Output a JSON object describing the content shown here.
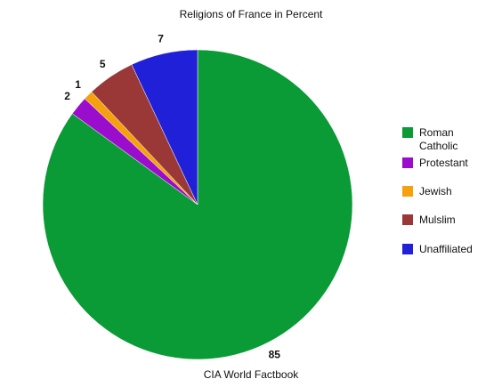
{
  "chart_data": {
    "type": "pie",
    "title": "Religions of France in Percent",
    "caption": "CIA World Factbook",
    "categories": [
      "Roman Catholic",
      "Protestant",
      "Jewish",
      "Mulslim",
      "Unaffiliated"
    ],
    "values": [
      85,
      2,
      1,
      5,
      7
    ],
    "colors": [
      "#0a9a36",
      "#9b0dcc",
      "#f5a10e",
      "#9a3838",
      "#2020d8"
    ],
    "legend": "right"
  }
}
